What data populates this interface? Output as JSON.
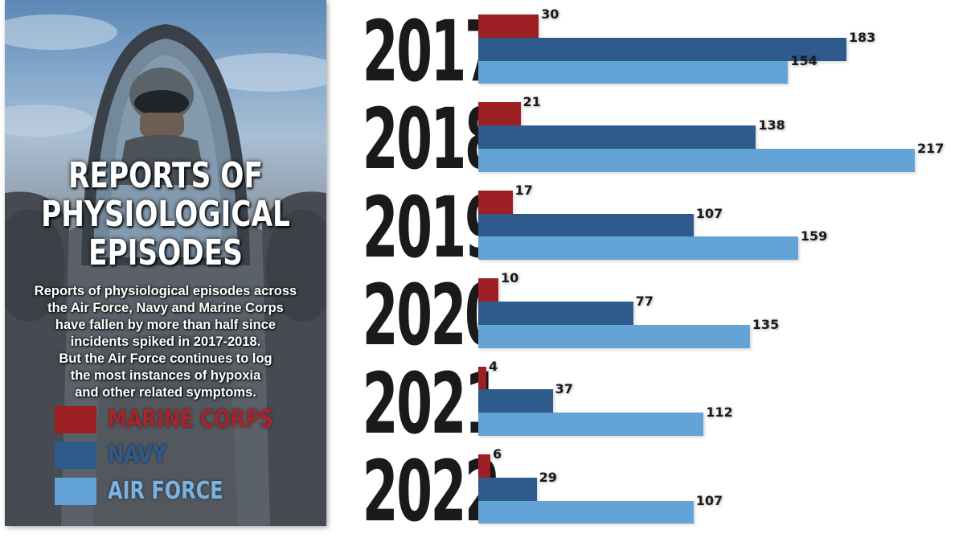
{
  "panel": {
    "title_lines": [
      "REPORTS OF",
      "PHYSIOLOGICAL",
      "EPISODES"
    ],
    "description_lines": [
      "Reports of physiological episodes across",
      "the Air Force, Navy and Marine Corps",
      "have fallen by more than half since",
      "incidents spiked in 2017-2018.",
      "But the Air Force continues to log",
      "the most instances of hypoxia",
      "and other related symptoms."
    ]
  },
  "legend": [
    {
      "label": "MARINE CORPS",
      "color": "#9c1f24",
      "text_color": "#a8242a"
    },
    {
      "label": "NAVY",
      "color": "#2e5b8c",
      "text_color": "#2e5b8c"
    },
    {
      "label": "AIR FORCE",
      "color": "#64a3d6",
      "text_color": "#7ab2e0"
    }
  ],
  "chart_data": {
    "type": "bar",
    "orientation": "horizontal",
    "title": "REPORTS OF PHYSIOLOGICAL EPISODES",
    "categories": [
      "2017",
      "2018",
      "2019",
      "2020",
      "2021",
      "2022"
    ],
    "series": [
      {
        "name": "MARINE CORPS",
        "color": "#9c1f24",
        "values": [
          30,
          21,
          17,
          10,
          4,
          6
        ]
      },
      {
        "name": "NAVY",
        "color": "#2e5b8c",
        "values": [
          183,
          138,
          107,
          77,
          37,
          29
        ]
      },
      {
        "name": "AIR FORCE",
        "color": "#64a3d6",
        "values": [
          154,
          217,
          159,
          135,
          112,
          107
        ]
      }
    ],
    "xlim": [
      0,
      217
    ],
    "grid": false,
    "legend_position": "left"
  }
}
